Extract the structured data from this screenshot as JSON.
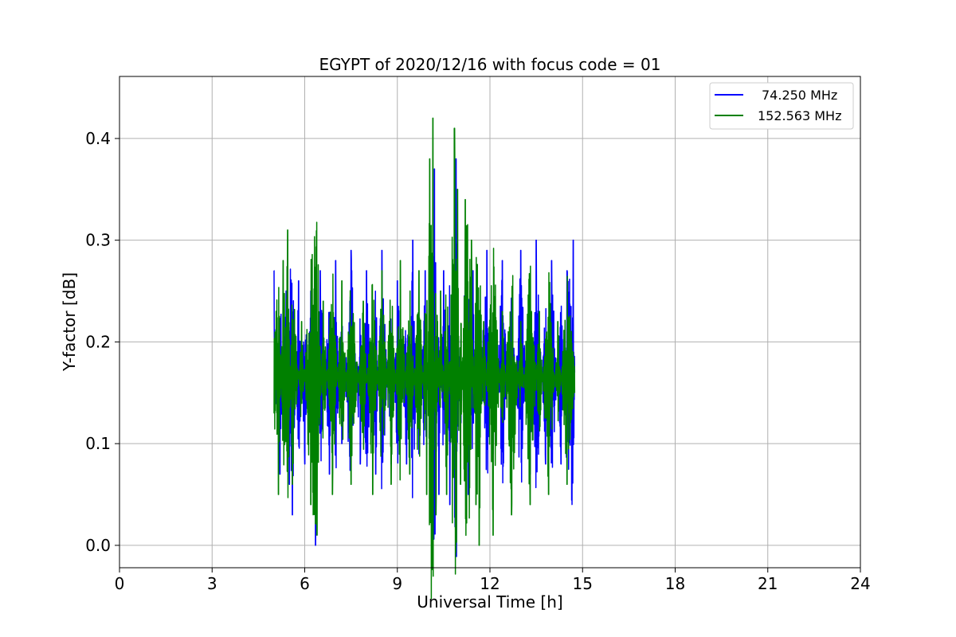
{
  "chart_data": {
    "type": "line",
    "title": "EGYPT of 2020/12/16 with focus code = 01",
    "xlabel": "Universal Time [h]",
    "ylabel": "Y-factor [dB]",
    "xlim": [
      0,
      24
    ],
    "ylim": [
      -0.022,
      0.461
    ],
    "xticks": [
      0,
      3,
      6,
      9,
      12,
      15,
      18,
      21,
      24
    ],
    "xtick_labels": [
      "0",
      "3",
      "6",
      "9",
      "12",
      "15",
      "18",
      "21",
      "24"
    ],
    "yticks": [
      0.0,
      0.1,
      0.2,
      0.3,
      0.4
    ],
    "ytick_labels": [
      "0.0",
      "0.1",
      "0.2",
      "0.3",
      "0.4"
    ],
    "grid": true,
    "legend_position": "top-right",
    "series": [
      {
        "name": "74.250 MHz",
        "color": "#0000ff",
        "x_range": [
          5.0,
          14.75
        ],
        "points": [
          [
            5.0,
            0.27
          ],
          [
            5.2,
            0.07
          ],
          [
            5.4,
            0.25
          ],
          [
            5.5,
            0.06
          ],
          [
            5.6,
            0.03
          ],
          [
            5.8,
            0.26
          ],
          [
            6.0,
            0.08
          ],
          [
            6.2,
            0.25
          ],
          [
            6.3,
            0.06
          ],
          [
            6.35,
            0.0
          ],
          [
            6.5,
            0.27
          ],
          [
            6.8,
            0.07
          ],
          [
            7.0,
            0.28
          ],
          [
            7.2,
            0.1
          ],
          [
            7.5,
            0.29
          ],
          [
            7.8,
            0.08
          ],
          [
            8.0,
            0.27
          ],
          [
            8.3,
            0.07
          ],
          [
            8.5,
            0.29
          ],
          [
            8.8,
            0.08
          ],
          [
            9.0,
            0.26
          ],
          [
            9.3,
            0.08
          ],
          [
            9.5,
            0.3
          ],
          [
            9.7,
            0.09
          ],
          [
            9.9,
            0.27
          ],
          [
            10.1,
            0.05
          ],
          [
            10.2,
            0.37
          ],
          [
            10.35,
            0.05
          ],
          [
            10.5,
            0.27
          ],
          [
            10.7,
            0.04
          ],
          [
            10.9,
            0.38
          ],
          [
            11.05,
            0.09
          ],
          [
            11.2,
            0.29
          ],
          [
            11.3,
            0.05
          ],
          [
            11.45,
            0.27
          ],
          [
            11.6,
            0.1
          ],
          [
            11.9,
            0.29
          ],
          [
            12.1,
            0.09
          ],
          [
            12.4,
            0.28
          ],
          [
            12.7,
            0.08
          ],
          [
            13.0,
            0.29
          ],
          [
            13.3,
            0.07
          ],
          [
            13.5,
            0.3
          ],
          [
            13.8,
            0.08
          ],
          [
            14.0,
            0.28
          ],
          [
            14.3,
            0.08
          ],
          [
            14.5,
            0.27
          ],
          [
            14.7,
            0.3
          ],
          [
            14.75,
            0.17
          ]
        ]
      },
      {
        "name": "152.563 MHz",
        "color": "#008000",
        "x_range": [
          5.0,
          14.75
        ],
        "points": [
          [
            5.0,
            0.13
          ],
          [
            5.15,
            0.05
          ],
          [
            5.3,
            0.28
          ],
          [
            5.45,
            0.31
          ],
          [
            5.6,
            0.06
          ],
          [
            5.9,
            0.22
          ],
          [
            6.2,
            0.04
          ],
          [
            6.4,
            0.01
          ],
          [
            6.6,
            0.24
          ],
          [
            6.9,
            0.05
          ],
          [
            7.2,
            0.26
          ],
          [
            7.5,
            0.06
          ],
          [
            7.9,
            0.24
          ],
          [
            8.2,
            0.05
          ],
          [
            8.5,
            0.27
          ],
          [
            8.8,
            0.06
          ],
          [
            9.1,
            0.28
          ],
          [
            9.4,
            0.07
          ],
          [
            9.7,
            0.27
          ],
          [
            9.95,
            0.05
          ],
          [
            10.05,
            0.38
          ],
          [
            10.15,
            0.42
          ],
          [
            10.25,
            0.03
          ],
          [
            10.4,
            0.25
          ],
          [
            10.6,
            0.05
          ],
          [
            10.85,
            0.41
          ],
          [
            10.95,
            0.35
          ],
          [
            11.05,
            0.06
          ],
          [
            11.2,
            0.34
          ],
          [
            11.4,
            0.3
          ],
          [
            11.55,
            0.04
          ],
          [
            11.65,
            0.0
          ],
          [
            11.8,
            0.22
          ],
          [
            12.1,
            0.01
          ],
          [
            12.4,
            0.23
          ],
          [
            12.7,
            0.03
          ],
          [
            13.0,
            0.22
          ],
          [
            13.3,
            0.04
          ],
          [
            13.6,
            0.23
          ],
          [
            13.9,
            0.05
          ],
          [
            14.2,
            0.22
          ],
          [
            14.5,
            0.06
          ],
          [
            14.75,
            0.15
          ]
        ]
      }
    ]
  }
}
